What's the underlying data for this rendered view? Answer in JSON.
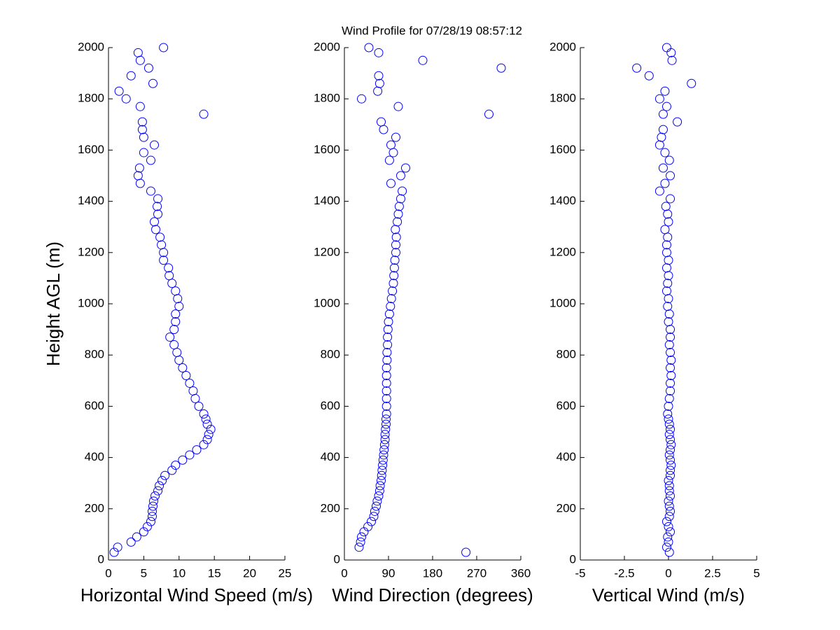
{
  "chart_data": [
    {
      "type": "scatter",
      "title": "Wind Profile for  07/28/19 08:57:12",
      "ylabel": "Height AGL (m)",
      "xlabel": "Horizontal Wind Speed (m/s)",
      "color": "#0000ff",
      "xlim": [
        0,
        25
      ],
      "xticks": [
        0,
        5,
        10,
        15,
        20,
        25
      ],
      "ylim": [
        0,
        2000
      ],
      "yticks": [
        0,
        200,
        400,
        600,
        800,
        1000,
        1200,
        1400,
        1600,
        1800,
        2000
      ],
      "x": [
        0.8,
        1.3,
        3.2,
        4,
        5,
        5.5,
        6,
        6.2,
        6.2,
        6.3,
        6.4,
        6.6,
        7,
        7.2,
        7.6,
        8,
        9,
        9.5,
        10.5,
        11.5,
        12.5,
        13.5,
        14,
        14.2,
        14.5,
        14,
        13.8,
        13.5,
        12.8,
        12.3,
        12,
        11.5,
        11,
        10.5,
        10,
        9.7,
        9.3,
        8.7,
        9.3,
        9.5,
        9.5,
        10,
        9.8,
        9.5,
        9,
        8.6,
        8.5,
        7.8,
        7.8,
        7.5,
        7.3,
        6.7,
        6.5,
        7,
        6.9,
        7,
        6,
        4.5,
        4.2,
        4.4,
        6,
        5,
        6.5,
        5,
        4.8,
        4.8,
        13.5,
        4.5,
        2.5,
        1.5,
        6.3,
        3.2,
        5.7,
        4.5,
        4.2,
        7.8
      ],
      "values": [
        30,
        50,
        70,
        90,
        110,
        130,
        150,
        170,
        190,
        210,
        230,
        250,
        270,
        290,
        310,
        330,
        350,
        370,
        390,
        410,
        430,
        450,
        470,
        490,
        510,
        530,
        550,
        570,
        600,
        630,
        660,
        690,
        720,
        750,
        780,
        810,
        840,
        870,
        900,
        930,
        960,
        990,
        1020,
        1050,
        1080,
        1110,
        1140,
        1170,
        1200,
        1230,
        1260,
        1290,
        1320,
        1350,
        1380,
        1410,
        1440,
        1470,
        1500,
        1530,
        1560,
        1590,
        1620,
        1650,
        1680,
        1710,
        1740,
        1770,
        1800,
        1830,
        1860,
        1890,
        1920,
        1950,
        1980,
        2000
      ]
    },
    {
      "type": "scatter",
      "xlabel": "Wind Direction (degrees)",
      "color": "#0000ff",
      "xlim": [
        0,
        360
      ],
      "xticks": [
        0,
        90,
        180,
        270,
        360
      ],
      "ylim": [
        0,
        2000
      ],
      "yticks": [
        0,
        200,
        400,
        600,
        800,
        1000,
        1200,
        1400,
        1600,
        1800,
        2000
      ],
      "x": [
        248,
        30,
        33,
        35,
        40,
        48,
        55,
        60,
        62,
        65,
        67,
        70,
        72,
        73,
        75,
        76,
        77,
        78,
        79,
        80,
        81,
        82,
        83,
        83,
        84,
        85,
        85,
        86,
        86,
        86,
        86,
        86,
        86,
        86,
        87,
        87,
        88,
        88,
        89,
        90,
        92,
        94,
        96,
        98,
        100,
        101,
        102,
        103,
        105,
        105,
        106,
        104,
        108,
        110,
        112,
        115,
        118,
        95,
        115,
        125,
        92,
        100,
        95,
        105,
        80,
        75,
        295,
        110,
        35,
        68,
        72,
        70,
        320,
        160,
        70,
        50
      ],
      "values": [
        30,
        50,
        70,
        90,
        110,
        130,
        150,
        170,
        190,
        210,
        230,
        250,
        270,
        290,
        310,
        330,
        350,
        370,
        390,
        410,
        430,
        450,
        470,
        490,
        510,
        530,
        550,
        570,
        600,
        630,
        660,
        690,
        720,
        750,
        780,
        810,
        840,
        870,
        900,
        930,
        960,
        990,
        1020,
        1050,
        1080,
        1110,
        1140,
        1170,
        1200,
        1230,
        1260,
        1290,
        1320,
        1350,
        1380,
        1410,
        1440,
        1470,
        1500,
        1530,
        1560,
        1590,
        1620,
        1650,
        1680,
        1710,
        1740,
        1770,
        1800,
        1830,
        1860,
        1890,
        1920,
        1950,
        1980,
        2000
      ]
    },
    {
      "type": "scatter",
      "xlabel": "Vertical Wind (m/s)",
      "color": "#0000ff",
      "xlim": [
        -5,
        5
      ],
      "xticks": [
        -5,
        -2.5,
        0,
        2.5,
        5
      ],
      "ylim": [
        0,
        2000
      ],
      "yticks": [
        0,
        200,
        400,
        600,
        800,
        1000,
        1200,
        1400,
        1600,
        1800,
        2000
      ],
      "x": [
        0.05,
        -0.1,
        0,
        -0.05,
        0.1,
        0,
        -0.1,
        0.05,
        0.1,
        0.05,
        0,
        0.1,
        0.05,
        0.05,
        0,
        0.1,
        0.1,
        0.15,
        0.1,
        0.05,
        0.1,
        0.15,
        0.1,
        0.05,
        0.1,
        0.05,
        0,
        -0.05,
        0,
        0.05,
        0.1,
        0.1,
        0.15,
        0.1,
        0.15,
        0.1,
        0.05,
        0.1,
        0.1,
        0,
        0.05,
        -0.05,
        0,
        -0.1,
        -0.05,
        0,
        -0.1,
        0,
        -0.1,
        -0.1,
        -0.05,
        -0.2,
        0,
        -0.05,
        -0.15,
        0.1,
        -0.5,
        -0.2,
        0.1,
        -0.3,
        0.05,
        -0.2,
        -0.5,
        -0.4,
        -0.3,
        0.5,
        -0.3,
        -0.1,
        -0.5,
        -0.2,
        1.3,
        -1.1,
        -1.8,
        0.2,
        0.15,
        -0.1
      ],
      "values": [
        30,
        50,
        70,
        90,
        110,
        130,
        150,
        170,
        190,
        210,
        230,
        250,
        270,
        290,
        310,
        330,
        350,
        370,
        390,
        410,
        430,
        450,
        470,
        490,
        510,
        530,
        550,
        570,
        600,
        630,
        660,
        690,
        720,
        750,
        780,
        810,
        840,
        870,
        900,
        930,
        960,
        990,
        1020,
        1050,
        1080,
        1110,
        1140,
        1170,
        1200,
        1230,
        1260,
        1290,
        1320,
        1350,
        1380,
        1410,
        1440,
        1470,
        1500,
        1530,
        1560,
        1590,
        1620,
        1650,
        1680,
        1710,
        1740,
        1770,
        1800,
        1830,
        1860,
        1890,
        1920,
        1950,
        1980,
        2000
      ]
    }
  ]
}
